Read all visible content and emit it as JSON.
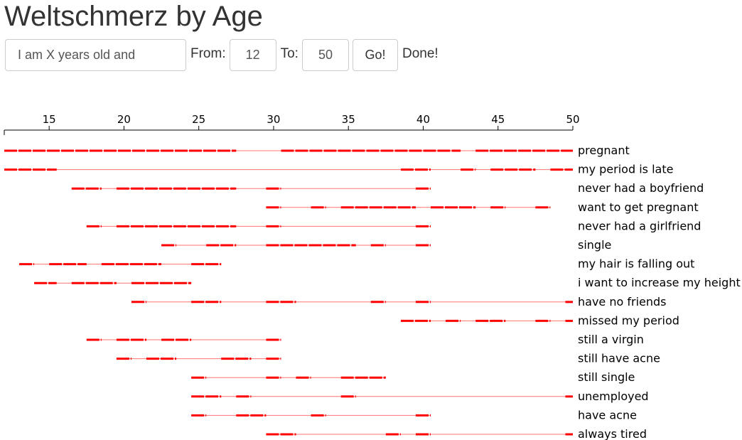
{
  "title": "Weltschmerz by Age",
  "controls": {
    "phrase_placeholder": "I am X years old and",
    "from_label": "From:",
    "from_value": "12",
    "to_label": "To:",
    "to_value": "50",
    "go_label": "Go!",
    "status": "Done!"
  },
  "chart_data": {
    "type": "timeline",
    "xlim": [
      12,
      50
    ],
    "ticks": [
      15,
      20,
      25,
      30,
      35,
      40,
      45,
      50
    ],
    "line_color": "#ff0000",
    "rows": [
      {
        "label": "pregnant",
        "segments": [
          [
            12,
            27.5
          ],
          [
            30.5,
            42.5
          ],
          [
            43.5,
            50
          ]
        ]
      },
      {
        "label": "my period is late",
        "segments": [
          [
            12,
            15.5
          ],
          [
            38.5,
            40.5
          ],
          [
            42.5,
            43.5
          ],
          [
            44.5,
            47.5
          ],
          [
            48.5,
            50
          ]
        ]
      },
      {
        "label": "never had a boyfriend",
        "segments": [
          [
            16.5,
            18.5
          ],
          [
            19.5,
            27.5
          ],
          [
            29.5,
            30.5
          ],
          [
            39.5,
            40.5
          ]
        ]
      },
      {
        "label": "want to get pregnant",
        "segments": [
          [
            29.5,
            30.5
          ],
          [
            32.5,
            33.5
          ],
          [
            34.5,
            39.5
          ],
          [
            40.5,
            43.5
          ],
          [
            44.5,
            45.5
          ],
          [
            47.5,
            48.5
          ]
        ]
      },
      {
        "label": "never had a girlfriend",
        "segments": [
          [
            17.5,
            18.5
          ],
          [
            19.5,
            27.5
          ],
          [
            29.5,
            30.5
          ],
          [
            39.5,
            40.5
          ]
        ]
      },
      {
        "label": "single",
        "segments": [
          [
            22.5,
            23.5
          ],
          [
            25.5,
            27.5
          ],
          [
            29.5,
            35.5
          ],
          [
            36.5,
            37.5
          ],
          [
            39.5,
            40.5
          ]
        ]
      },
      {
        "label": "my hair is falling out",
        "segments": [
          [
            13,
            14
          ],
          [
            15,
            17.5
          ],
          [
            18.5,
            22.5
          ],
          [
            24.5,
            26.5
          ]
        ]
      },
      {
        "label": "i want to increase my height",
        "segments": [
          [
            14,
            15.5
          ],
          [
            16.5,
            19.5
          ],
          [
            20.5,
            24.5
          ]
        ]
      },
      {
        "label": "have no friends",
        "segments": [
          [
            20.5,
            21.5
          ],
          [
            24.5,
            26.5
          ],
          [
            29.5,
            31.5
          ],
          [
            36.5,
            37.5
          ],
          [
            39.5,
            40.5
          ],
          [
            49.5,
            50
          ]
        ]
      },
      {
        "label": "missed my period",
        "segments": [
          [
            38.5,
            40.5
          ],
          [
            41.5,
            42.5
          ],
          [
            43.5,
            45.5
          ],
          [
            47.5,
            48.5
          ],
          [
            49.5,
            50
          ]
        ]
      },
      {
        "label": "still a virgin",
        "segments": [
          [
            17.5,
            18.5
          ],
          [
            19.5,
            21.5
          ],
          [
            22.5,
            24.5
          ],
          [
            29.5,
            30.5
          ]
        ]
      },
      {
        "label": "still have acne",
        "segments": [
          [
            19.5,
            20.5
          ],
          [
            21.5,
            23.5
          ],
          [
            26.5,
            28.5
          ],
          [
            29.5,
            30.5
          ]
        ]
      },
      {
        "label": "still single",
        "segments": [
          [
            24.5,
            25.5
          ],
          [
            29.5,
            30.5
          ],
          [
            31.5,
            32.5
          ],
          [
            34.5,
            37.5
          ]
        ]
      },
      {
        "label": "unemployed",
        "segments": [
          [
            24.5,
            26.5
          ],
          [
            27.5,
            28.5
          ],
          [
            34.5,
            35.5
          ],
          [
            49.5,
            50
          ]
        ]
      },
      {
        "label": "have acne",
        "segments": [
          [
            24.5,
            25.5
          ],
          [
            27.5,
            29.5
          ],
          [
            32.5,
            33.5
          ],
          [
            39.5,
            40.5
          ]
        ]
      },
      {
        "label": "always tired",
        "segments": [
          [
            29.5,
            31.5
          ],
          [
            37.5,
            38.5
          ],
          [
            39.5,
            40.5
          ],
          [
            49.5,
            50
          ]
        ]
      }
    ]
  }
}
